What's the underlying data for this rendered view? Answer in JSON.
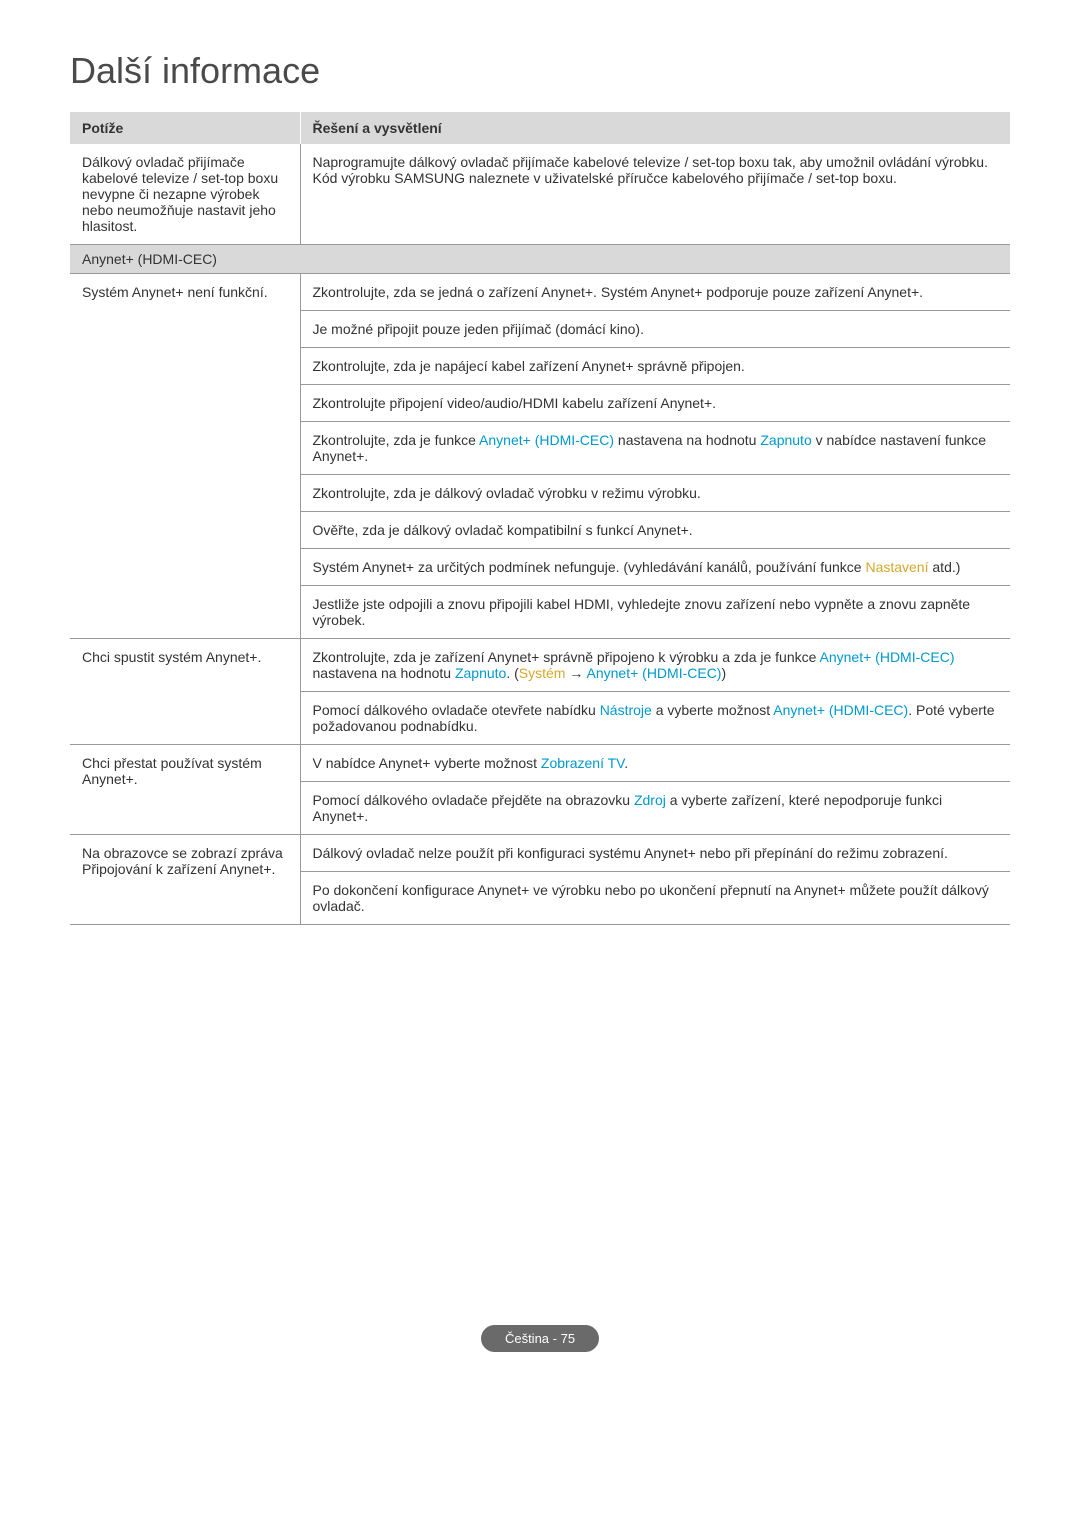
{
  "title": "Další informace",
  "table": {
    "headers": {
      "problem": "Potíže",
      "solution": "Řešení a vysvětlení"
    },
    "section_label": "Anynet+ (HDMI-CEC)",
    "rows": [
      {
        "problem": "Dálkový ovladač přijímače kabelové televize / set-top boxu nevypne či nezapne výrobek nebo neumožňuje nastavit jeho hlasitost.",
        "solutions": [
          {
            "parts": [
              {
                "text": "Naprogramujte dálkový ovladač přijímače kabelové televize / set-top boxu tak, aby umožnil ovládání výrobku. Kód výrobku SAMSUNG naleznete v uživatelské příručce kabelového přijímače / set-top boxu."
              }
            ]
          }
        ]
      },
      {
        "problem": "Systém Anynet+ není funkční.",
        "solutions": [
          {
            "parts": [
              {
                "text": "Zkontrolujte, zda se jedná o zařízení Anynet+. Systém Anynet+ podporuje pouze zařízení Anynet+."
              }
            ]
          },
          {
            "parts": [
              {
                "text": "Je možné připojit pouze jeden přijímač (domácí kino)."
              }
            ]
          },
          {
            "parts": [
              {
                "text": "Zkontrolujte, zda je napájecí kabel zařízení Anynet+ správně připojen."
              }
            ]
          },
          {
            "parts": [
              {
                "text": "Zkontrolujte připojení video/audio/HDMI kabelu zařízení Anynet+."
              }
            ]
          },
          {
            "parts": [
              {
                "text": "Zkontrolujte, zda je funkce "
              },
              {
                "text": "Anynet+ (HDMI-CEC)",
                "class": "highlight"
              },
              {
                "text": " nastavena na hodnotu "
              },
              {
                "text": "Zapnuto",
                "class": "highlight"
              },
              {
                "text": " v nabídce nastavení funkce Anynet+."
              }
            ]
          },
          {
            "parts": [
              {
                "text": "Zkontrolujte, zda je dálkový ovladač výrobku v režimu výrobku."
              }
            ]
          },
          {
            "parts": [
              {
                "text": "Ověřte, zda je dálkový ovladač kompatibilní s funkcí Anynet+."
              }
            ]
          },
          {
            "parts": [
              {
                "text": "Systém Anynet+ za určitých podmínek nefunguje. (vyhledávání kanálů, používání funkce "
              },
              {
                "text": "Nastavení",
                "class": "highlight-alt"
              },
              {
                "text": " atd.)"
              }
            ]
          },
          {
            "parts": [
              {
                "text": "Jestliže jste odpojili a znovu připojili kabel HDMI, vyhledejte znovu zařízení nebo vypněte a znovu zapněte výrobek."
              }
            ]
          }
        ]
      },
      {
        "problem": "Chci spustit systém Anynet+.",
        "solutions": [
          {
            "parts": [
              {
                "text": "Zkontrolujte, zda je zařízení Anynet+ správně připojeno k výrobku a zda je funkce "
              },
              {
                "text": "Anynet+ (HDMI-CEC)",
                "class": "highlight"
              },
              {
                "text": " nastavena na hodnotu "
              },
              {
                "text": "Zapnuto",
                "class": "highlight"
              },
              {
                "text": ". ("
              },
              {
                "text": "Systém",
                "class": "highlight-alt"
              },
              {
                "text": " → "
              },
              {
                "text": "Anynet+ (HDMI-CEC)",
                "class": "highlight"
              },
              {
                "text": ")"
              }
            ]
          },
          {
            "parts": [
              {
                "text": "Pomocí dálkového ovladače otevřete nabídku "
              },
              {
                "text": "Nástroje",
                "class": "highlight"
              },
              {
                "text": " a vyberte možnost "
              },
              {
                "text": "Anynet+ (HDMI-CEC)",
                "class": "highlight"
              },
              {
                "text": ". Poté vyberte požadovanou podnabídku."
              }
            ]
          }
        ]
      },
      {
        "problem": "Chci přestat používat systém Anynet+.",
        "solutions": [
          {
            "parts": [
              {
                "text": "V nabídce Anynet+ vyberte možnost "
              },
              {
                "text": "Zobrazení TV",
                "class": "highlight"
              },
              {
                "text": "."
              }
            ]
          },
          {
            "parts": [
              {
                "text": "Pomocí dálkového ovladače přejděte na obrazovku "
              },
              {
                "text": "Zdroj",
                "class": "highlight"
              },
              {
                "text": " a vyberte zařízení, které nepodporuje funkci Anynet+."
              }
            ]
          }
        ]
      },
      {
        "problem": "Na obrazovce se zobrazí zpráva Připojování k zařízení Anynet+.",
        "solutions": [
          {
            "parts": [
              {
                "text": "Dálkový ovladač nelze použít při konfiguraci systému Anynet+ nebo při přepínání do režimu zobrazení."
              }
            ]
          },
          {
            "parts": [
              {
                "text": "Po dokončení konfigurace Anynet+ ve výrobku nebo po ukončení přepnutí na Anynet+ můžete použít dálkový ovladač."
              }
            ]
          }
        ]
      }
    ]
  },
  "footer": "Čeština - 75"
}
